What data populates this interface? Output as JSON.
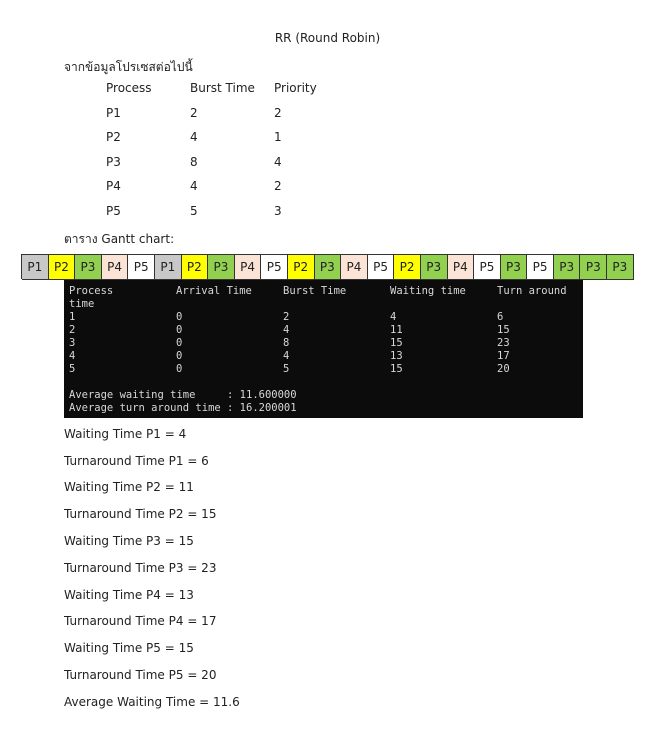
{
  "title": "RR (Round Robin)",
  "intro": "จากข้อมูลโปรเซสต่อไปนี้",
  "process_table": {
    "headers": [
      "Process",
      "Burst Time",
      "Priority"
    ],
    "rows": [
      [
        "P1",
        "2",
        "2"
      ],
      [
        "P2",
        "4",
        "1"
      ],
      [
        "P3",
        "8",
        "4"
      ],
      [
        "P4",
        "4",
        "2"
      ],
      [
        "P5",
        "5",
        "3"
      ]
    ]
  },
  "gantt_label": "ตาราง Gantt chart:",
  "gantt": [
    "P1",
    "P2",
    "P3",
    "P4",
    "P5",
    "P1",
    "P2",
    "P3",
    "P4",
    "P5",
    "P2",
    "P3",
    "P4",
    "P5",
    "P2",
    "P3",
    "P4",
    "P5",
    "P3",
    "P5",
    "P3",
    "P3",
    "P3"
  ],
  "colors": {
    "P1": "#c8c8c8",
    "P2": "#ffff00",
    "P3": "#92d050",
    "P4": "#fbe4d5",
    "P5": "#ffffff"
  },
  "terminal": {
    "headers": [
      "Process",
      "Arrival Time",
      "Burst Time",
      "Waiting time",
      "Turn around"
    ],
    "header_wrap": "time",
    "rows": [
      [
        "1",
        "0",
        "2",
        "4",
        "6"
      ],
      [
        "2",
        "0",
        "4",
        "11",
        "15"
      ],
      [
        "3",
        "0",
        "8",
        "15",
        "23"
      ],
      [
        "4",
        "0",
        "4",
        "13",
        "17"
      ],
      [
        "5",
        "0",
        "5",
        "15",
        "20"
      ]
    ],
    "avg_wait": "Average waiting time     : 11.600000",
    "avg_tat": "Average turn around time : 16.200001"
  },
  "results": [
    "Waiting Time P1 = 4",
    "Turnaround Time P1 = 6",
    "Waiting Time P2 = 11",
    "Turnaround Time P2 = 15",
    "Waiting Time P3 = 15",
    "Turnaround Time P3 = 23",
    "Waiting Time P4 = 13",
    "Turnaround Time P4 = 17",
    "Waiting Time P5 = 15",
    "Turnaround Time P5 = 20",
    "Average Waiting Time = 11.6"
  ]
}
